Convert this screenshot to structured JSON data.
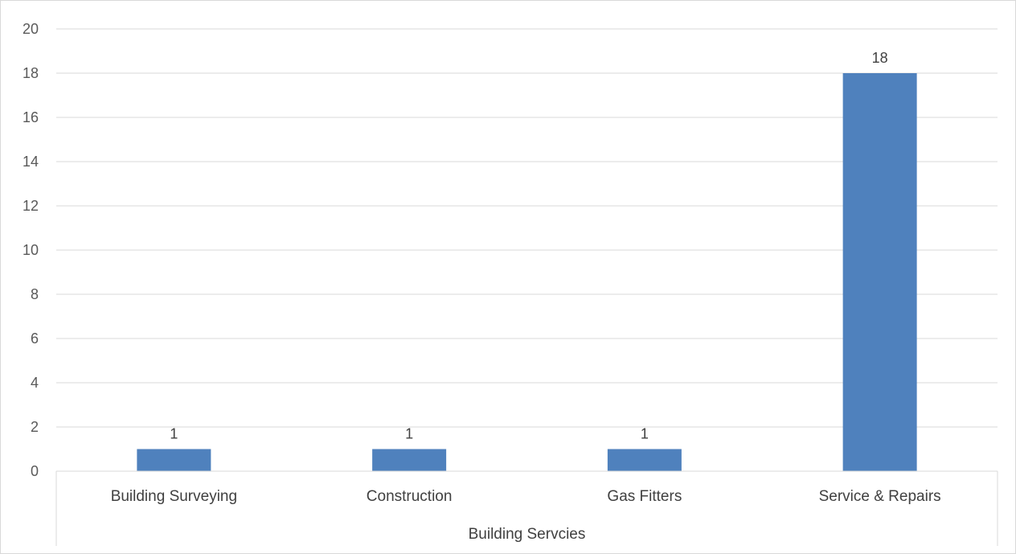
{
  "chart_data": {
    "type": "bar",
    "categories": [
      "Building Surveying",
      "Construction",
      "Gas Fitters",
      "Service & Repairs"
    ],
    "values": [
      1,
      1,
      1,
      18
    ],
    "data_labels": [
      "1",
      "1",
      "1",
      "18"
    ],
    "category_group_label": "Building Servcies",
    "title": "",
    "xlabel": "",
    "ylabel": "",
    "ylim": [
      0,
      20
    ],
    "yticks": [
      0,
      2,
      4,
      6,
      8,
      10,
      12,
      14,
      16,
      18,
      20
    ],
    "grid": true,
    "legend": "none",
    "colors": {
      "bar": "#4f81bd",
      "grid": "#d9d9d9",
      "axis": "#d9d9d9"
    }
  }
}
